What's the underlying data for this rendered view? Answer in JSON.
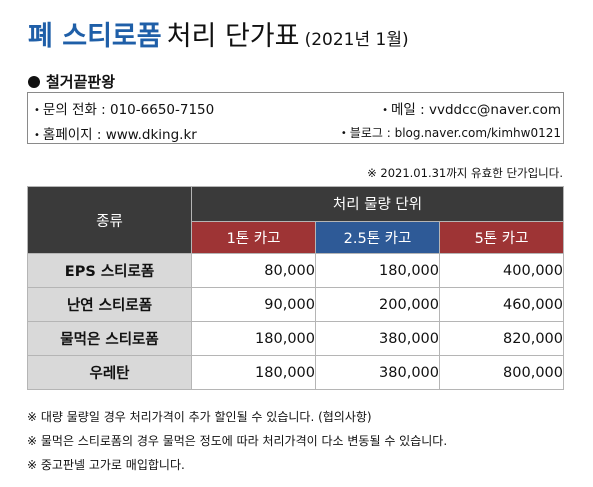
{
  "title": {
    "highlight": "폐 스티로폼",
    "main": "처리 단가표",
    "date": "(2021년 1월)"
  },
  "company": {
    "name": "철거끝판왕"
  },
  "contact": {
    "phone": "문의 전화 : 010-6650-7150",
    "email": "메일 : vvddcc@naver.com",
    "homepage": "홈페이지 : www.dking.kr",
    "blog": "블로그 : blog.naver.com/kimhw0121"
  },
  "validity_note": "※ 2021.01.31까지 유효한 단가입니다.",
  "table": {
    "kind_header": "종류",
    "unit_header": "처리 물량 단위",
    "columns": [
      "1톤 카고",
      "2.5톤 카고",
      "5톤 카고"
    ],
    "rows": [
      {
        "name": "EPS 스티로폼",
        "values": [
          "80,000",
          "180,000",
          "400,000"
        ]
      },
      {
        "name": "난연 스티로폼",
        "values": [
          "90,000",
          "200,000",
          "460,000"
        ]
      },
      {
        "name": "물먹은 스티로폼",
        "values": [
          "180,000",
          "380,000",
          "820,000"
        ]
      },
      {
        "name": "우레탄",
        "values": [
          "180,000",
          "380,000",
          "800,000"
        ]
      }
    ]
  },
  "footnotes": [
    "※ 대량 물량일 경우 처리가격이 추가 할인될 수 있습니다. (협의사항)",
    "※ 물먹은 스티로폼의 경우 물먹은 정도에 따라 처리가격이 다소 변동될 수 있습니다.",
    "※ 중고판넬 고가로 매입합니다."
  ],
  "colors": {
    "title_blue": "#1f5fa8",
    "header_dark": "#3a3a3a",
    "header_red": "#9e3435",
    "header_blue": "#2e5a97",
    "row_label_gray": "#d9d9d9"
  }
}
